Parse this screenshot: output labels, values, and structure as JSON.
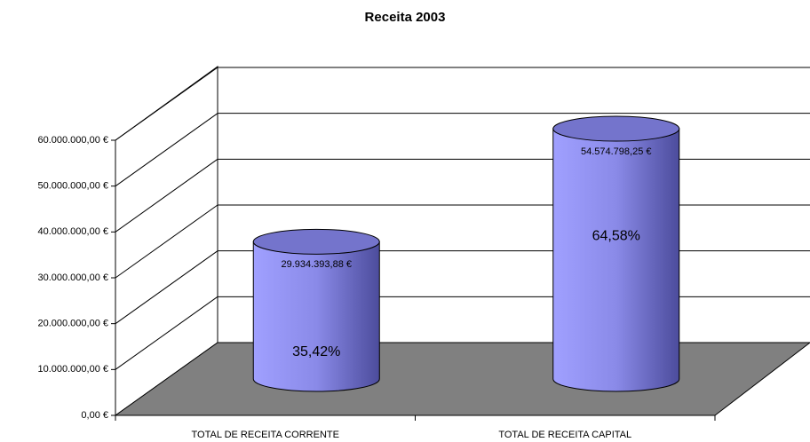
{
  "chart_data": {
    "type": "bar3d",
    "title": "Receita 2003",
    "categories": [
      "TOTAL DE RECEITA CORRENTE",
      "TOTAL DE RECEITA CAPITAL"
    ],
    "values": [
      29934393.88,
      54574798.25
    ],
    "value_labels": [
      "29.934.393,88 €",
      "54.574.798,25 €"
    ],
    "percent_labels": [
      "35,42%",
      "64,58%"
    ],
    "color": "#9999ff",
    "ylim": [
      0,
      60000000
    ],
    "yticks": [
      {
        "value": 0,
        "label": "0,00 €"
      },
      {
        "value": 10000000,
        "label": "10.000.000,00 €"
      },
      {
        "value": 20000000,
        "label": "20.000.000,00 €"
      },
      {
        "value": 30000000,
        "label": "30.000.000,00 €"
      },
      {
        "value": 40000000,
        "label": "40.000.000,00 €"
      },
      {
        "value": 50000000,
        "label": "50.000.000,00 €"
      },
      {
        "value": 60000000,
        "label": "60.000.000,00 €"
      }
    ],
    "grid": true
  }
}
